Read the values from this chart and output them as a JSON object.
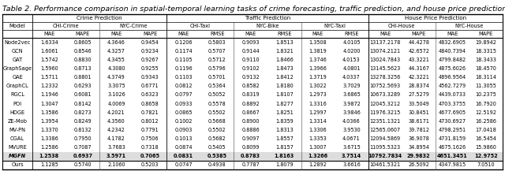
{
  "title": "Table 2. Performance comparison in spatial-temporal learning tasks of crime forecasting, traffic prediction, and house price prediction.",
  "models": [
    "Node2vec",
    "GCN",
    "GAT",
    "GraphSage",
    "GAE",
    "GraphCL",
    "RGCL",
    "POI",
    "HDGE",
    "ZE-Mob",
    "MV-PN",
    "CGAL",
    "MVURE",
    "MGFN",
    "Ours"
  ],
  "metrics": [
    "MAE",
    "MAPE",
    "MAE",
    "MAPE",
    "MAE",
    "RMSE",
    "MAE",
    "RMSE",
    "MAE",
    "RMSE",
    "MAE",
    "MAPE",
    "MAE",
    "MAPE"
  ],
  "group_headers": [
    {
      "label": "Crime Prediction",
      "start": 1,
      "end": 4
    },
    {
      "label": "Traffic Prediction",
      "start": 5,
      "end": 10
    },
    {
      "label": "House Price Prediction",
      "start": 11,
      "end": 14
    }
  ],
  "sub_headers": [
    {
      "label": "CHI-Crime",
      "start": 1,
      "end": 2
    },
    {
      "label": "NYC-Crime",
      "start": 3,
      "end": 4
    },
    {
      "label": "CHI-Taxi",
      "start": 5,
      "end": 6
    },
    {
      "label": "NYC-Bike",
      "start": 7,
      "end": 8
    },
    {
      "label": "NYC-Taxi",
      "start": 9,
      "end": 10
    },
    {
      "label": "CHI-House",
      "start": 11,
      "end": 12
    },
    {
      "label": "NYC-House",
      "start": 13,
      "end": 14
    }
  ],
  "data": [
    [
      1.6334,
      0.8605,
      4.3646,
      0.9454,
      0.1206,
      0.5803,
      0.9093,
      1.8513,
      1.3508,
      4.0105,
      13137.2178,
      44.4278,
      4832.6905,
      19.8942
    ],
    [
      1.6061,
      0.8546,
      4.3257,
      0.9234,
      0.1174,
      0.5707,
      0.9144,
      1.8321,
      1.3819,
      4.02,
      13074.2121,
      42.6572,
      4840.7394,
      18.3315
    ],
    [
      1.5742,
      0.883,
      4.3455,
      0.9267,
      0.1105,
      0.5712,
      0.911,
      1.8466,
      1.3746,
      4.0153,
      13024.7843,
      43.3221,
      4799.8482,
      18.3433
    ],
    [
      1.596,
      0.8713,
      4.308,
      0.9255,
      0.1196,
      0.5796,
      0.9102,
      1.8473,
      1.3966,
      4.0801,
      13145.5623,
      44.3167,
      4875.6026,
      18.457
    ],
    [
      1.5711,
      0.8801,
      4.3749,
      0.9343,
      0.1103,
      0.5701,
      0.9132,
      1.8412,
      1.3719,
      4.0337,
      13278.3256,
      42.3221,
      4896.9564,
      18.3114
    ],
    [
      1.2332,
      0.6293,
      3.3075,
      0.6771,
      0.0812,
      0.5364,
      0.8582,
      1.818,
      1.3022,
      3.7029,
      10752.5693,
      28.8374,
      4562.7279,
      11.3055
    ],
    [
      1.1946,
      0.6081,
      3.1026,
      0.6323,
      0.0797,
      0.5052,
      0.8319,
      1.8107,
      1.2973,
      3.6865,
      10673.3289,
      27.5279,
      4439.0733,
      10.2375
    ],
    [
      1.3047,
      0.8142,
      4.0069,
      0.8658,
      0.0933,
      0.5578,
      0.8892,
      1.8277,
      1.3316,
      3.9872,
      12045.3212,
      33.5049,
      4703.3755,
      16.792
    ],
    [
      1.3586,
      0.8273,
      4.2021,
      0.7821,
      0.0865,
      0.5502,
      0.8667,
      1.8251,
      1.2997,
      3.9846,
      11976.3215,
      30.8451,
      4677.6905,
      12.5192
    ],
    [
      1.3954,
      0.8249,
      4.356,
      0.8012,
      0.1002,
      0.5668,
      0.89,
      1.8359,
      1.3314,
      4.0366,
      12351.1321,
      38.6171,
      4730.6927,
      16.2586
    ],
    [
      1.337,
      0.8132,
      4.2342,
      0.7791,
      0.0903,
      0.5502,
      0.8886,
      1.8313,
      1.3306,
      3.953,
      12565.0607,
      39.7812,
      4798.2951,
      17.0418
    ],
    [
      1.3386,
      0.795,
      4.1782,
      0.7506,
      0.1013,
      0.5682,
      0.9097,
      1.8557,
      1.3353,
      4.0671,
      12094.5869,
      36.9078,
      4731.8159,
      16.5454
    ],
    [
      1.2586,
      0.7087,
      3.7683,
      0.7318,
      0.0874,
      0.5405,
      0.8099,
      1.8157,
      1.3007,
      3.6715,
      11095.5323,
      34.8954,
      4675.1626,
      15.986
    ],
    [
      1.2538,
      0.6937,
      3.5971,
      0.7065,
      0.0831,
      0.5385,
      0.8783,
      1.8163,
      1.3266,
      3.7514,
      10792.7834,
      29.9832,
      4651.3451,
      12.9752
    ],
    [
      1.1285,
      0.574,
      2.106,
      0.5203,
      0.0747,
      0.4938,
      0.7787,
      1.8079,
      1.2892,
      3.6616,
      10461.5321,
      26.5092,
      4347.9815,
      7.051
    ]
  ],
  "bold_row_idx": 14,
  "title_fontsize": 6.8,
  "fs": 4.8
}
